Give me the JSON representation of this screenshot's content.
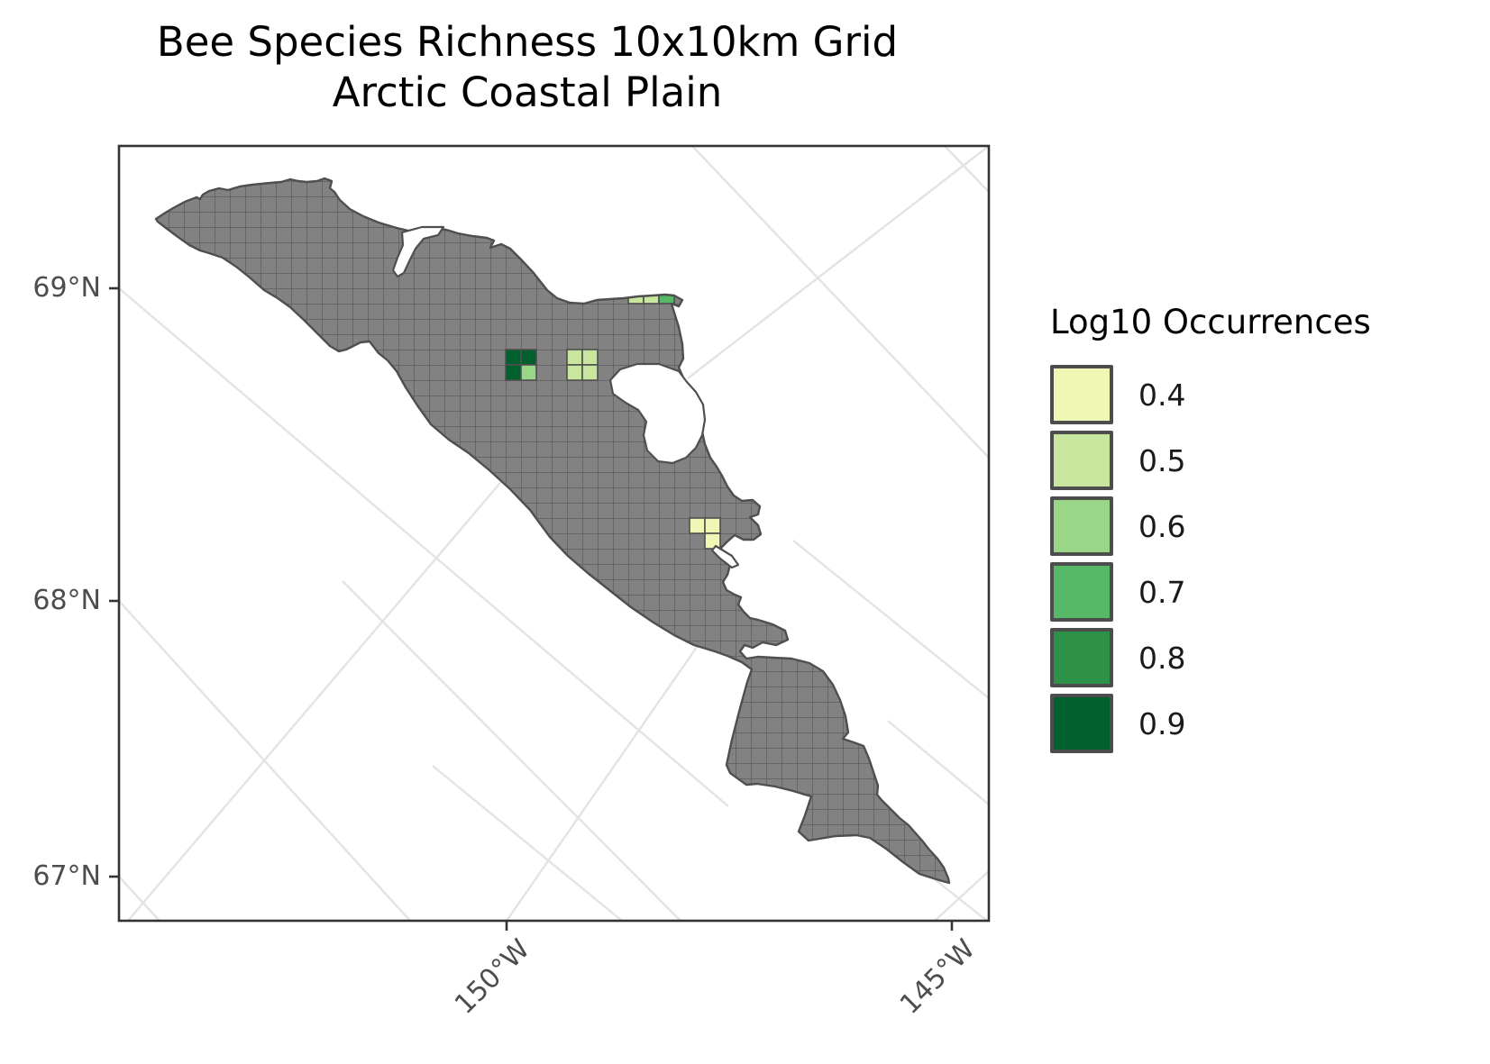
{
  "chart_data": {
    "type": "choropleth-grid-map",
    "title": "Bee Species Richness 10x10km Grid",
    "subtitle": "Arctic Coastal Plain",
    "grid_resolution_km": "10x10",
    "legend": {
      "title": "Log10 Occurrences",
      "bins": [
        {
          "label": "0.4",
          "value": 0.4,
          "color": "#f0f7b4"
        },
        {
          "label": "0.5",
          "value": 0.5,
          "color": "#c8e69e"
        },
        {
          "label": "0.6",
          "value": 0.6,
          "color": "#9ad688"
        },
        {
          "label": "0.7",
          "value": 0.7,
          "color": "#56b967"
        },
        {
          "label": "0.8",
          "value": 0.8,
          "color": "#2e9148"
        },
        {
          "label": "0.9",
          "value": 0.9,
          "color": "#00612e"
        }
      ],
      "position": "right"
    },
    "x_axis": {
      "label": "",
      "ticks": [
        {
          "label": "150°W"
        },
        {
          "label": "145°W"
        }
      ],
      "tick_angle_deg": 45
    },
    "y_axis": {
      "label": "",
      "ticks": [
        {
          "label": "69°N"
        },
        {
          "label": "68°N"
        },
        {
          "label": "67°N"
        }
      ]
    },
    "graticule": "on",
    "base_land_color": "#828282",
    "grid_line_color": "#5e5e5e",
    "coastline_color": "#4f4f4f",
    "graticule_color": "#e3e3e3",
    "cells": [
      {
        "col": 33,
        "row": 22,
        "value": 0.9
      },
      {
        "col": 34,
        "row": 22,
        "value": 0.9
      },
      {
        "col": 33,
        "row": 23,
        "value": 0.9
      },
      {
        "col": 34,
        "row": 23,
        "value": 0.6
      },
      {
        "col": 37,
        "row": 22,
        "value": 0.5
      },
      {
        "col": 38,
        "row": 22,
        "value": 0.5
      },
      {
        "col": 37,
        "row": 23,
        "value": 0.5
      },
      {
        "col": 38,
        "row": 23,
        "value": 0.5
      },
      {
        "col": 45,
        "row": 33,
        "value": 0.4
      },
      {
        "col": 46,
        "row": 33,
        "value": 0.4
      },
      {
        "col": 46,
        "row": 34,
        "value": 0.4
      },
      {
        "col": 41,
        "row": 18,
        "value": 0.5,
        "partial": true
      },
      {
        "col": 42,
        "row": 18,
        "value": 0.5,
        "partial": true
      },
      {
        "col": 43,
        "row": 18,
        "value": 0.7,
        "partial": true
      }
    ]
  }
}
